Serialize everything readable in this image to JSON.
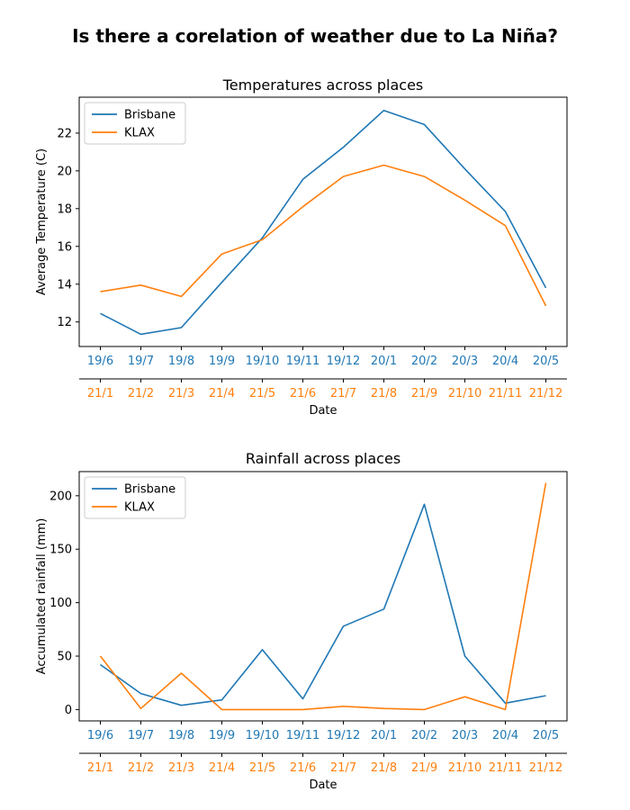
{
  "suptitle": "Is there a corelation of weather due to La Niña?",
  "colors": {
    "brisbane": "#1f77b4",
    "klax": "#ff7f0e"
  },
  "chart_data": [
    {
      "type": "line",
      "title": "Temperatures across places",
      "xlabel": "Date",
      "ylabel": "Average Temperature (C)",
      "ylim": [
        10.7,
        23.9
      ],
      "yticks": [
        12,
        14,
        16,
        18,
        20,
        22
      ],
      "grid": false,
      "legend_loc": "upper-left",
      "x_primary": [
        "19/6",
        "19/7",
        "19/8",
        "19/9",
        "19/10",
        "19/11",
        "19/12",
        "20/1",
        "20/2",
        "20/3",
        "20/4",
        "20/5"
      ],
      "x_secondary": [
        "21/1",
        "21/2",
        "21/3",
        "21/4",
        "21/5",
        "21/6",
        "21/7",
        "21/8",
        "21/9",
        "21/10",
        "21/11",
        "21/12"
      ],
      "series": [
        {
          "name": "Brisbane",
          "axis": "primary",
          "color": "#1f77b4",
          "values": [
            12.45,
            11.35,
            11.7,
            14.1,
            16.45,
            19.55,
            21.25,
            23.2,
            22.45,
            20.1,
            17.85,
            13.8
          ]
        },
        {
          "name": "KLAX",
          "axis": "secondary",
          "color": "#ff7f0e",
          "values": [
            13.6,
            13.95,
            13.35,
            15.6,
            16.35,
            18.1,
            19.7,
            20.3,
            19.7,
            18.45,
            17.1,
            12.85
          ]
        }
      ]
    },
    {
      "type": "line",
      "title": "Rainfall across places",
      "xlabel": "Date",
      "ylabel": "Accumulated rainfall (mm)",
      "ylim": [
        -10.6,
        222.6
      ],
      "yticks": [
        0,
        50,
        100,
        150,
        200
      ],
      "grid": false,
      "legend_loc": "upper-left",
      "x_primary": [
        "19/6",
        "19/7",
        "19/8",
        "19/9",
        "19/10",
        "19/11",
        "19/12",
        "20/1",
        "20/2",
        "20/3",
        "20/4",
        "20/5"
      ],
      "x_secondary": [
        "21/1",
        "21/2",
        "21/3",
        "21/4",
        "21/5",
        "21/6",
        "21/7",
        "21/8",
        "21/9",
        "21/10",
        "21/11",
        "21/12"
      ],
      "series": [
        {
          "name": "Brisbane",
          "axis": "primary",
          "color": "#1f77b4",
          "values": [
            42,
            15,
            4,
            9,
            56,
            10,
            78,
            94,
            192,
            50,
            6,
            13
          ]
        },
        {
          "name": "KLAX",
          "axis": "secondary",
          "color": "#ff7f0e",
          "values": [
            50,
            1,
            34,
            0,
            0,
            0,
            3,
            1,
            0,
            12,
            0,
            212
          ]
        }
      ]
    }
  ]
}
